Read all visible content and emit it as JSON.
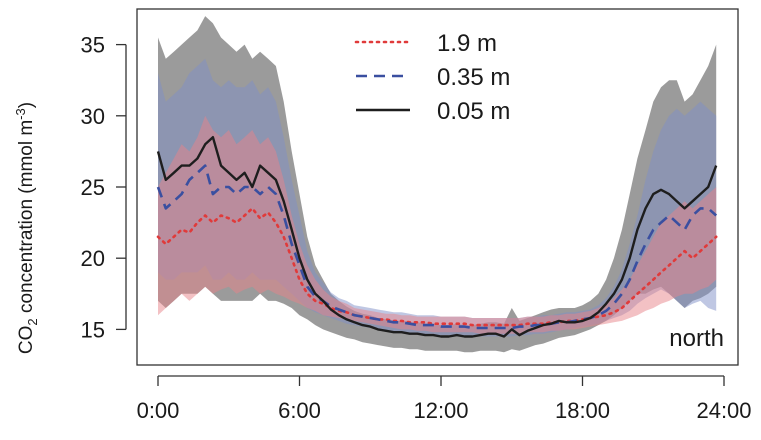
{
  "chart_data": {
    "type": "line",
    "title": "",
    "xlabel": "",
    "ylabel": {
      "prefix": "CO",
      "subscript": "2",
      "middle": " concentration (mmol m",
      "superscript": "-3",
      "suffix": ")"
    },
    "annotation": "north",
    "xlim": [
      0,
      24
    ],
    "ylim": [
      12.5,
      37.5
    ],
    "x_ticks": [
      0,
      6,
      12,
      18,
      24
    ],
    "x_tick_labels": [
      "0:00",
      "6:00",
      "12:00",
      "18:00",
      "24:00"
    ],
    "y_ticks": [
      15,
      20,
      25,
      30,
      35
    ],
    "y_tick_labels": [
      "15",
      "20",
      "25",
      "30",
      "35"
    ],
    "grid": false,
    "legend_position": "top-center",
    "x": [
      0,
      0.33,
      0.67,
      1,
      1.33,
      1.67,
      2,
      2.33,
      2.67,
      3,
      3.33,
      3.67,
      4,
      4.33,
      4.67,
      5,
      5.33,
      5.67,
      6,
      6.33,
      6.67,
      7,
      7.33,
      7.67,
      8,
      8.33,
      8.67,
      9,
      9.33,
      9.67,
      10,
      10.33,
      10.67,
      11,
      11.33,
      11.67,
      12,
      12.33,
      12.67,
      13,
      13.33,
      13.67,
      14,
      14.33,
      14.67,
      15,
      15.33,
      15.67,
      16,
      16.33,
      16.67,
      17,
      17.33,
      17.67,
      18,
      18.33,
      18.67,
      19,
      19.33,
      19.67,
      20,
      20.33,
      20.67,
      21,
      21.33,
      21.67,
      22,
      22.33,
      22.67,
      23,
      23.33,
      23.67
    ],
    "series": [
      {
        "name": "1.9 m",
        "color": "#e03a3a",
        "band_color": "#e8848a",
        "dash": "dotted",
        "values": [
          21.5,
          21.0,
          21.5,
          22.0,
          21.8,
          22.5,
          23.0,
          22.5,
          23.0,
          22.8,
          22.5,
          23.0,
          23.5,
          22.8,
          23.2,
          22.5,
          21.5,
          20.0,
          18.5,
          17.5,
          17.0,
          16.8,
          16.5,
          16.3,
          16.2,
          16.0,
          15.9,
          15.8,
          15.7,
          15.7,
          15.6,
          15.6,
          15.5,
          15.5,
          15.5,
          15.4,
          15.4,
          15.4,
          15.4,
          15.4,
          15.3,
          15.3,
          15.3,
          15.3,
          15.3,
          15.3,
          15.3,
          15.4,
          15.4,
          15.4,
          15.5,
          15.5,
          15.6,
          15.6,
          15.7,
          15.8,
          15.9,
          16.0,
          16.2,
          16.5,
          17.0,
          17.5,
          18.0,
          18.5,
          19.0,
          19.5,
          20.0,
          20.5,
          20.0,
          20.5,
          21.0,
          21.5
        ],
        "lower": [
          16.0,
          16.5,
          17.0,
          17.5,
          17.0,
          17.5,
          18.0,
          17.5,
          17.8,
          18.0,
          17.5,
          17.8,
          18.0,
          17.5,
          17.8,
          17.5,
          17.3,
          17.0,
          16.8,
          16.5,
          16.3,
          16.0,
          15.9,
          15.8,
          15.7,
          15.6,
          15.5,
          15.4,
          15.3,
          15.2,
          15.1,
          15.0,
          15.0,
          14.9,
          14.9,
          14.8,
          14.8,
          14.8,
          14.8,
          14.8,
          14.8,
          14.7,
          14.7,
          14.7,
          14.7,
          14.7,
          14.7,
          14.8,
          14.8,
          14.8,
          14.9,
          14.9,
          15.0,
          15.0,
          15.1,
          15.2,
          15.3,
          15.4,
          15.5,
          15.6,
          15.8,
          16.0,
          16.3,
          16.5,
          16.8,
          17.0,
          17.3,
          17.5,
          17.5,
          17.8,
          18.0,
          18.5
        ],
        "upper": [
          25.0,
          26.0,
          27.0,
          28.0,
          27.5,
          28.5,
          30.0,
          29.0,
          28.5,
          29.0,
          28.0,
          28.5,
          29.0,
          28.0,
          28.5,
          27.5,
          25.5,
          23.0,
          21.0,
          19.5,
          18.5,
          17.8,
          17.3,
          17.0,
          16.8,
          16.5,
          16.4,
          16.3,
          16.2,
          16.1,
          16.1,
          16.0,
          16.0,
          15.9,
          15.9,
          15.9,
          15.9,
          15.9,
          15.9,
          15.9,
          15.8,
          15.8,
          15.8,
          15.8,
          15.8,
          15.8,
          15.8,
          15.9,
          15.9,
          15.9,
          16.0,
          16.0,
          16.1,
          16.1,
          16.2,
          16.3,
          16.5,
          16.8,
          17.2,
          17.8,
          18.5,
          19.5,
          20.5,
          21.5,
          22.5,
          23.0,
          23.5,
          24.0,
          23.5,
          24.0,
          24.5,
          25.0
        ]
      },
      {
        "name": "0.35 m",
        "color": "#3a4fa0",
        "band_color": "#7f8fc8",
        "dash": "dashed",
        "values": [
          25.0,
          23.5,
          24.0,
          24.5,
          25.5,
          26.0,
          26.5,
          24.5,
          25.0,
          25.0,
          24.5,
          25.0,
          25.0,
          24.5,
          25.0,
          24.5,
          23.0,
          21.0,
          19.5,
          18.0,
          17.3,
          17.0,
          16.6,
          16.4,
          16.2,
          16.0,
          15.9,
          15.8,
          15.7,
          15.6,
          15.5,
          15.5,
          15.4,
          15.3,
          15.3,
          15.3,
          15.2,
          15.2,
          15.2,
          15.2,
          15.1,
          15.1,
          15.1,
          15.1,
          15.1,
          15.1,
          15.2,
          15.2,
          15.3,
          15.3,
          15.4,
          15.5,
          15.5,
          15.6,
          15.7,
          15.8,
          16.0,
          16.3,
          16.8,
          17.5,
          18.5,
          19.8,
          21.0,
          22.0,
          22.5,
          23.0,
          22.5,
          22.0,
          23.0,
          23.5,
          23.5,
          23.0
        ],
        "lower": [
          19.0,
          18.5,
          18.5,
          19.0,
          19.0,
          19.0,
          19.5,
          18.5,
          18.5,
          19.0,
          18.5,
          18.5,
          19.0,
          18.5,
          18.5,
          18.5,
          18.0,
          17.5,
          17.0,
          16.5,
          16.2,
          16.0,
          15.8,
          15.6,
          15.4,
          15.3,
          15.2,
          15.1,
          15.0,
          14.9,
          14.8,
          14.8,
          14.7,
          14.7,
          14.6,
          14.6,
          14.6,
          14.6,
          14.5,
          14.5,
          14.5,
          14.5,
          14.5,
          14.5,
          14.5,
          14.5,
          14.6,
          14.6,
          14.7,
          14.7,
          14.8,
          14.9,
          15.0,
          15.1,
          15.2,
          15.3,
          15.4,
          15.6,
          15.8,
          16.0,
          16.3,
          16.8,
          17.2,
          17.5,
          17.8,
          17.5,
          17.0,
          16.5,
          16.8,
          17.0,
          16.5,
          16.3
        ],
        "upper": [
          33.0,
          31.0,
          31.5,
          32.0,
          33.0,
          33.5,
          34.0,
          32.5,
          32.0,
          32.5,
          32.0,
          32.0,
          32.5,
          31.5,
          32.0,
          31.0,
          28.5,
          25.5,
          23.0,
          20.5,
          19.0,
          18.3,
          17.6,
          17.2,
          17.0,
          16.7,
          16.6,
          16.5,
          16.4,
          16.3,
          16.2,
          16.2,
          16.1,
          16.0,
          16.0,
          16.0,
          15.9,
          15.9,
          15.9,
          15.9,
          15.8,
          15.8,
          15.8,
          15.8,
          15.8,
          15.8,
          15.8,
          15.9,
          15.9,
          16.0,
          16.0,
          16.1,
          16.2,
          16.2,
          16.3,
          16.4,
          16.7,
          17.2,
          18.0,
          19.2,
          21.0,
          23.0,
          25.5,
          27.5,
          29.0,
          30.0,
          30.5,
          30.0,
          30.5,
          31.0,
          30.5,
          30.0
        ]
      },
      {
        "name": "0.05 m",
        "color": "#1e1e1e",
        "band_color": "#7a7a7a",
        "dash": "solid",
        "values": [
          27.5,
          25.5,
          26.0,
          26.5,
          26.5,
          27.0,
          28.0,
          28.5,
          26.5,
          26.0,
          25.5,
          26.0,
          25.0,
          26.5,
          26.0,
          25.5,
          24.0,
          22.0,
          20.0,
          18.5,
          17.5,
          17.0,
          16.4,
          16.0,
          15.7,
          15.5,
          15.3,
          15.2,
          15.0,
          14.9,
          14.8,
          14.8,
          14.7,
          14.7,
          14.6,
          14.6,
          14.5,
          14.5,
          14.6,
          14.5,
          14.5,
          14.6,
          14.7,
          14.7,
          14.5,
          15.0,
          14.6,
          14.9,
          15.1,
          15.3,
          15.4,
          15.6,
          15.5,
          15.5,
          15.6,
          15.8,
          16.2,
          16.8,
          17.5,
          18.5,
          20.0,
          22.0,
          23.5,
          24.5,
          24.8,
          24.5,
          24.0,
          23.5,
          24.0,
          24.5,
          25.0,
          26.5
        ],
        "lower": [
          17.0,
          16.5,
          17.0,
          17.5,
          17.5,
          17.5,
          18.0,
          17.5,
          17.0,
          17.0,
          17.0,
          17.0,
          17.0,
          17.5,
          17.0,
          17.0,
          16.8,
          16.5,
          16.0,
          15.7,
          15.3,
          15.0,
          14.8,
          14.6,
          14.4,
          14.3,
          14.1,
          14.0,
          13.9,
          13.8,
          13.7,
          13.7,
          13.6,
          13.6,
          13.5,
          13.5,
          13.5,
          13.5,
          13.5,
          13.4,
          13.4,
          13.5,
          13.5,
          13.5,
          13.4,
          13.6,
          13.5,
          13.7,
          13.9,
          14.0,
          14.2,
          14.4,
          14.5,
          14.6,
          14.8,
          15.0,
          15.3,
          15.6,
          16.0,
          16.5,
          17.0,
          17.5,
          17.5,
          17.8,
          18.0,
          17.5,
          17.0,
          16.5,
          17.0,
          17.2,
          17.5,
          18.0
        ],
        "upper": [
          35.5,
          34.0,
          34.5,
          35.0,
          35.5,
          36.0,
          37.0,
          36.5,
          35.5,
          35.0,
          34.5,
          35.0,
          34.0,
          34.5,
          34.0,
          33.5,
          31.0,
          27.5,
          24.5,
          21.5,
          19.5,
          18.5,
          17.5,
          17.0,
          16.6,
          16.3,
          16.1,
          16.0,
          15.8,
          15.7,
          15.6,
          15.6,
          15.5,
          15.5,
          15.4,
          15.4,
          15.3,
          15.3,
          15.4,
          15.3,
          15.3,
          15.4,
          15.5,
          15.5,
          15.4,
          16.5,
          15.6,
          15.8,
          16.0,
          16.2,
          16.4,
          16.5,
          16.5,
          16.5,
          16.7,
          17.0,
          17.5,
          18.5,
          20.0,
          22.0,
          24.5,
          27.0,
          29.0,
          31.0,
          32.0,
          32.5,
          32.5,
          31.0,
          31.5,
          32.5,
          33.5,
          35.0
        ]
      }
    ]
  }
}
